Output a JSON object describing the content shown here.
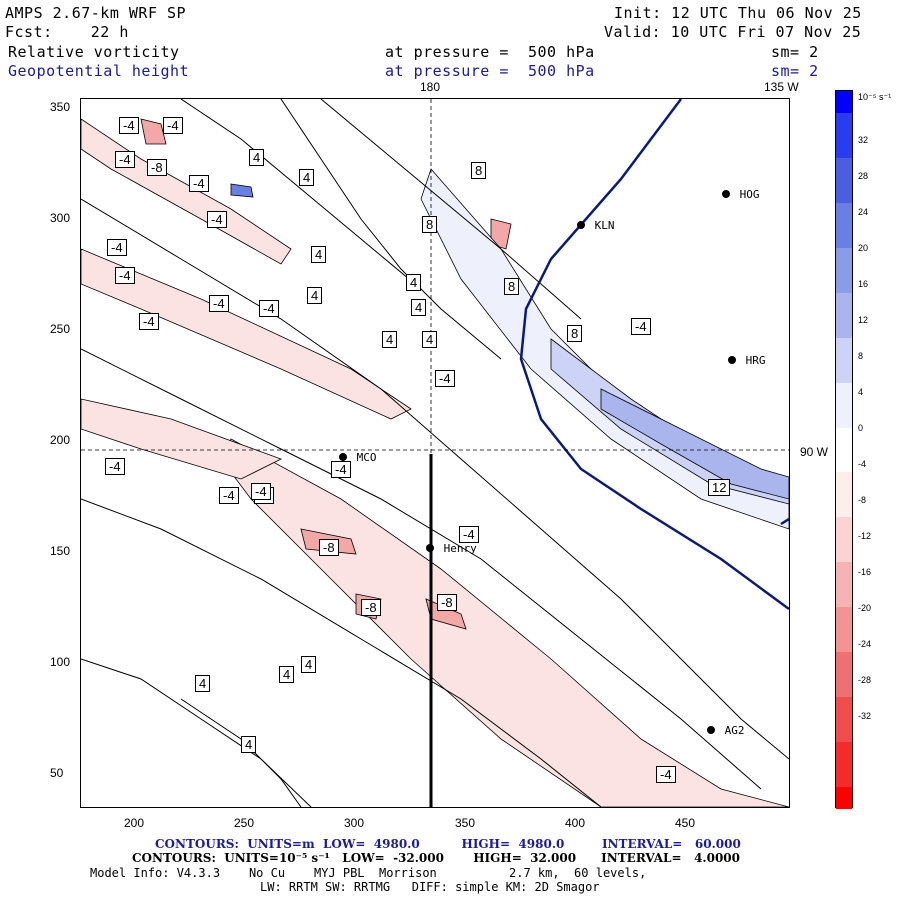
{
  "header": {
    "model": "AMPS 2.67-km WRF SP",
    "init": "Init: 12 UTC Thu 06 Nov 25",
    "fcst": "Fcst:    22 h",
    "valid": "Valid: 10 UTC Fri 07 Nov 25",
    "field1_name": "Relative vorticity",
    "field1_level": "at pressure =  500 hPa",
    "field1_sm": "sm= 2",
    "field2_name": "Geopotential height",
    "field2_level": "at pressure =  500 hPa",
    "field2_sm": "sm= 2"
  },
  "map": {
    "top_label_180": "180",
    "top_label_135w": "135 W",
    "right_label_90w": "90 W",
    "x_ticks": [
      "200",
      "250",
      "300",
      "350",
      "400",
      "450"
    ],
    "y_ticks": [
      "350",
      "300",
      "250",
      "200",
      "150",
      "100",
      "50"
    ],
    "stations": [
      {
        "name": "MCO"
      },
      {
        "name": "Henry"
      },
      {
        "name": "KLN"
      },
      {
        "name": "HOG"
      },
      {
        "name": "HRG"
      },
      {
        "name": "AG2"
      }
    ],
    "contour_labels": [
      "-4",
      "-4",
      "-4",
      "-8",
      "-4",
      "-4",
      "-4",
      "-4",
      "-4",
      "-4",
      "-4",
      "-4",
      "-4",
      "-4",
      "4",
      "4",
      "4",
      "4",
      "4",
      "4",
      "4",
      "4",
      "8",
      "8",
      "8",
      "8",
      "-4",
      "-8",
      "-8",
      "-8",
      "12",
      "-4",
      "-4",
      "-4",
      "-4",
      "-4",
      "4",
      "4",
      "4",
      "4"
    ]
  },
  "colorbar": {
    "unit": "10⁻⁵ s⁻¹",
    "labels": [
      "32",
      "28",
      "24",
      "20",
      "16",
      "12",
      "8",
      "4",
      "0",
      "-4",
      "-8",
      "-12",
      "-16",
      "-20",
      "-24",
      "-28",
      "-32"
    ],
    "colors": [
      "#0000ff",
      "#2a3cf0",
      "#4a5fe0",
      "#6a7fe4",
      "#8c9be8",
      "#aab5ee",
      "#ccd3f6",
      "#eef0fc",
      "#ffffff",
      "#fdeeee",
      "#fbd3d3",
      "#f6b3b3",
      "#f29494",
      "#ef7070",
      "#f24d4d",
      "#f52a2a",
      "#ff0000"
    ]
  },
  "footer": {
    "line1": "CONTOURS:  UNITS=m  LOW=  4980.0          HIGH=  4980.0         INTERVAL=   60.000",
    "line2": "CONTOURS:  UNITS=10⁻⁵ s⁻¹   LOW=  -32.000       HIGH=  32.000      INTERVAL=   4.0000",
    "line3": "Model Info: V4.3.3    No Cu    MYJ PBL  Morrison          2.7 km,  60 levels,",
    "line4": "LW: RRTM SW: RRTMG   DIFF: simple KM: 2D Smagor"
  }
}
